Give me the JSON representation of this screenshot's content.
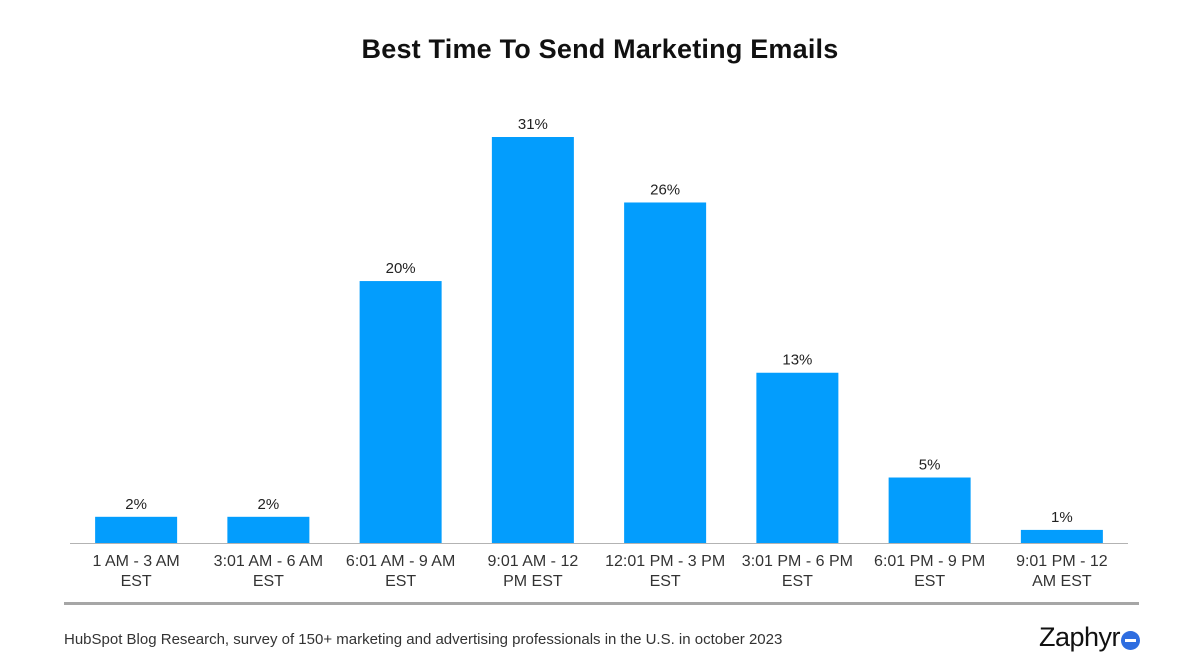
{
  "chart_data": {
    "type": "bar",
    "title": "Best Time To Send Marketing Emails",
    "categories": [
      [
        "1 AM - 3 AM",
        "EST"
      ],
      [
        "3:01 AM - 6 AM",
        "EST"
      ],
      [
        "6:01 AM - 9 AM",
        "EST"
      ],
      [
        "9:01 AM - 12",
        "PM EST"
      ],
      [
        "12:01 PM - 3 PM",
        "EST"
      ],
      [
        "3:01 PM - 6 PM",
        "EST"
      ],
      [
        "6:01 PM - 9 PM",
        "EST"
      ],
      [
        "9:01 PM - 12",
        "AM EST"
      ]
    ],
    "values": [
      2,
      2,
      20,
      31,
      26,
      13,
      5,
      1
    ],
    "value_labels": [
      "2%",
      "2%",
      "20%",
      "31%",
      "26%",
      "13%",
      "5%",
      "1%"
    ],
    "xlabel": "",
    "ylabel": "",
    "ylim": [
      0,
      31
    ],
    "grid": false,
    "bar_color": "#039dfd"
  },
  "footer": {
    "source": "HubSpot Blog Research, survey of 150+ marketing and advertising professionals in the U.S. in october 2023",
    "brand": "Zaphyr"
  },
  "colors": {
    "bar": "#039dfd",
    "axis": "#b3b3b3",
    "divider": "#a6a6a6",
    "brand_accent": "#2e6de0"
  }
}
